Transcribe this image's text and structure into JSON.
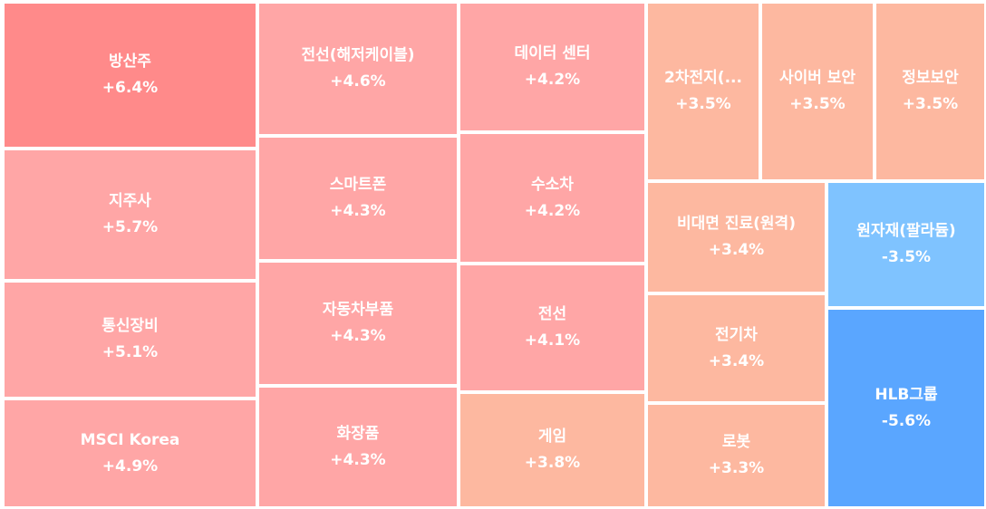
{
  "chart_data": {
    "type": "treemap",
    "colors": {
      "strong_up": "#ff8a8a",
      "up": "#ffa6a6",
      "mild_up": "#fdb8a0",
      "down": "#7fc3ff",
      "strong_down": "#5aa6ff",
      "text": "#ffffff"
    },
    "items": [
      {
        "name": "방산주",
        "value": "+6.4%",
        "change": 6.4,
        "color": "strong_up"
      },
      {
        "name": "지주사",
        "value": "+5.7%",
        "change": 5.7,
        "color": "up"
      },
      {
        "name": "통신장비",
        "value": "+5.1%",
        "change": 5.1,
        "color": "up"
      },
      {
        "name": "MSCI Korea",
        "value": "+4.9%",
        "change": 4.9,
        "color": "up"
      },
      {
        "name": "전선(해저케이블)",
        "value": "+4.6%",
        "change": 4.6,
        "color": "up"
      },
      {
        "name": "스마트폰",
        "value": "+4.3%",
        "change": 4.3,
        "color": "up"
      },
      {
        "name": "자동차부품",
        "value": "+4.3%",
        "change": 4.3,
        "color": "up"
      },
      {
        "name": "화장품",
        "value": "+4.3%",
        "change": 4.3,
        "color": "up"
      },
      {
        "name": "데이터 센터",
        "value": "+4.2%",
        "change": 4.2,
        "color": "up"
      },
      {
        "name": "수소차",
        "value": "+4.2%",
        "change": 4.2,
        "color": "up"
      },
      {
        "name": "전선",
        "value": "+4.1%",
        "change": 4.1,
        "color": "up"
      },
      {
        "name": "게임",
        "value": "+3.8%",
        "change": 3.8,
        "color": "mild_up"
      },
      {
        "name": "2차전지(...",
        "value": "+3.5%",
        "change": 3.5,
        "color": "mild_up"
      },
      {
        "name": "사이버 보안",
        "value": "+3.5%",
        "change": 3.5,
        "color": "mild_up"
      },
      {
        "name": "정보보안",
        "value": "+3.5%",
        "change": 3.5,
        "color": "mild_up"
      },
      {
        "name": "비대면 진료(원격)",
        "value": "+3.4%",
        "change": 3.4,
        "color": "mild_up"
      },
      {
        "name": "전기차",
        "value": "+3.4%",
        "change": 3.4,
        "color": "mild_up"
      },
      {
        "name": "로봇",
        "value": "+3.3%",
        "change": 3.3,
        "color": "mild_up"
      },
      {
        "name": "원자재(팔라듐)",
        "value": "-3.5%",
        "change": -3.5,
        "color": "down"
      },
      {
        "name": "HLB그룹",
        "value": "-5.6%",
        "change": -5.6,
        "color": "strong_down"
      }
    ]
  }
}
